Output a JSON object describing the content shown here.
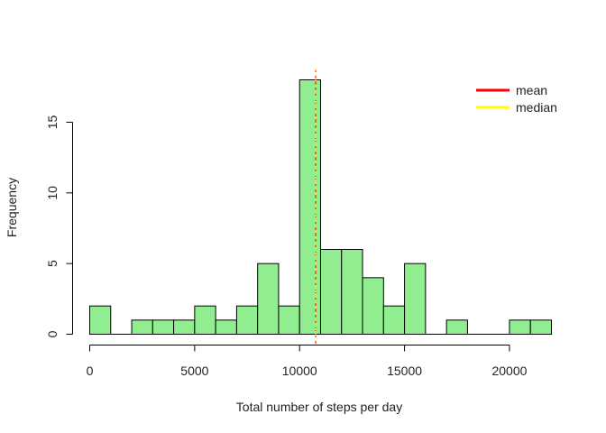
{
  "chart_data": {
    "type": "bar",
    "title": "",
    "xlabel": "Total number of steps per day",
    "ylabel": "Frequency",
    "bin_width": 1000,
    "bin_start": 0,
    "values": [
      2,
      0,
      1,
      1,
      1,
      2,
      1,
      2,
      5,
      2,
      18,
      6,
      6,
      4,
      2,
      5,
      0,
      1,
      0,
      0,
      1,
      1
    ],
    "xlim": [
      0,
      22000
    ],
    "ylim": [
      0,
      18
    ],
    "x_ticks": [
      "0",
      "5000",
      "10000",
      "15000",
      "20000"
    ],
    "x_tick_values": [
      0,
      5000,
      10000,
      15000,
      20000
    ],
    "y_ticks": [
      "0",
      "5",
      "10",
      "15"
    ],
    "y_tick_values": [
      0,
      5,
      10,
      15
    ],
    "bar_color": "#90ee90",
    "bar_border": "#000000",
    "grid": false,
    "reference_lines": [
      {
        "name": "mean",
        "value": 10766,
        "color": "#ff0000"
      },
      {
        "name": "median",
        "value": 10765,
        "color": "#ffff00"
      }
    ],
    "legend": {
      "position": "top-right",
      "entries": [
        {
          "label": "mean",
          "color": "#ff0000"
        },
        {
          "label": "median",
          "color": "#ffff00"
        }
      ]
    }
  }
}
